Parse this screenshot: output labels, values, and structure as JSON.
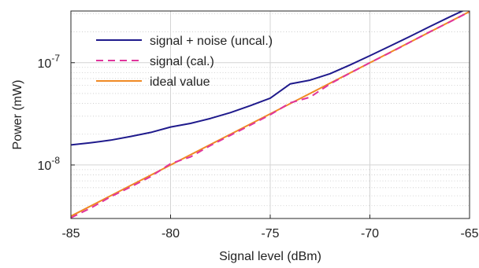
{
  "chart_data": {
    "type": "line",
    "title": "",
    "xlabel": "Signal level (dBm)",
    "ylabel": "Power (mW)",
    "xlim": [
      -85,
      -65
    ],
    "ylim": [
      3e-09,
      3.2e-07
    ],
    "yscale": "log",
    "grid": true,
    "minor_grid": true,
    "legend_position": "top-left",
    "x_ticks": [
      -85,
      -80,
      -75,
      -70,
      -65
    ],
    "x_tick_labels": [
      "-85",
      "-80",
      "-75",
      "-70",
      "-65"
    ],
    "y_ticks": [
      1e-08,
      1e-07
    ],
    "y_tick_labels": [
      {
        "base": "10",
        "exp": "-8"
      },
      {
        "base": "10",
        "exp": "-7"
      }
    ],
    "series": [
      {
        "name": "signal + noise (uncal.)",
        "color": "#1f1a8c",
        "dash": "solid",
        "x": [
          -85,
          -84,
          -83,
          -82,
          -81,
          -80,
          -79,
          -78,
          -77,
          -76,
          -75,
          -74,
          -73,
          -72,
          -71,
          -70,
          -69,
          -68,
          -67,
          -66,
          -65
        ],
        "y": [
          1.57e-08,
          1.65e-08,
          1.75e-08,
          1.9e-08,
          2.08e-08,
          2.35e-08,
          2.55e-08,
          2.85e-08,
          3.25e-08,
          3.8e-08,
          4.5e-08,
          6.2e-08,
          6.75e-08,
          7.8e-08,
          9.5e-08,
          1.17e-07,
          1.45e-07,
          1.8e-07,
          2.25e-07,
          2.8e-07,
          3.45e-07
        ]
      },
      {
        "name": "signal (cal.)",
        "color": "#e0359c",
        "dash": "dashed",
        "x": [
          -85,
          -84,
          -83,
          -82,
          -81,
          -80,
          -79,
          -78,
          -77,
          -76,
          -75,
          -74,
          -73,
          -72,
          -71,
          -70,
          -69,
          -68,
          -67,
          -66,
          -65
        ],
        "y": [
          3.05e-09,
          3.8e-09,
          4.9e-09,
          6.1e-09,
          7.7e-09,
          1.03e-08,
          1.2e-08,
          1.55e-08,
          1.95e-08,
          2.45e-08,
          3.1e-08,
          4.05e-08,
          4.6e-08,
          6.2e-08,
          7.9e-08,
          1e-07,
          1.25e-07,
          1.58e-07,
          2e-07,
          2.5e-07,
          3.15e-07
        ]
      },
      {
        "name": "ideal value",
        "color": "#f08a24",
        "dash": "solid",
        "x": [
          -85,
          -65
        ],
        "y": [
          3.16e-09,
          3.16e-07
        ]
      }
    ]
  }
}
